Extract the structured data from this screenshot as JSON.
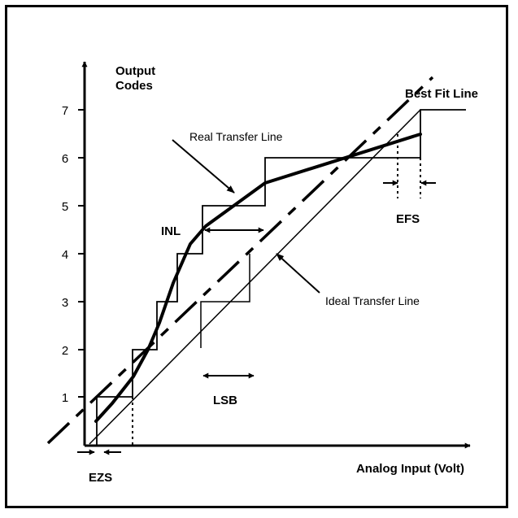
{
  "axis": {
    "y_title_line1": "Output",
    "y_title_line2": "Codes",
    "x_title": "Analog Input (Volt)",
    "y_ticks": [
      "1",
      "2",
      "3",
      "4",
      "5",
      "6",
      "7"
    ]
  },
  "labels": {
    "best_fit": "Best Fit Line",
    "real_transfer": "Real Transfer Line",
    "ideal_transfer": "Ideal Transfer Line",
    "inl": "INL",
    "lsb": "LSB",
    "efs": "EFS",
    "ezs": "EZS"
  }
}
